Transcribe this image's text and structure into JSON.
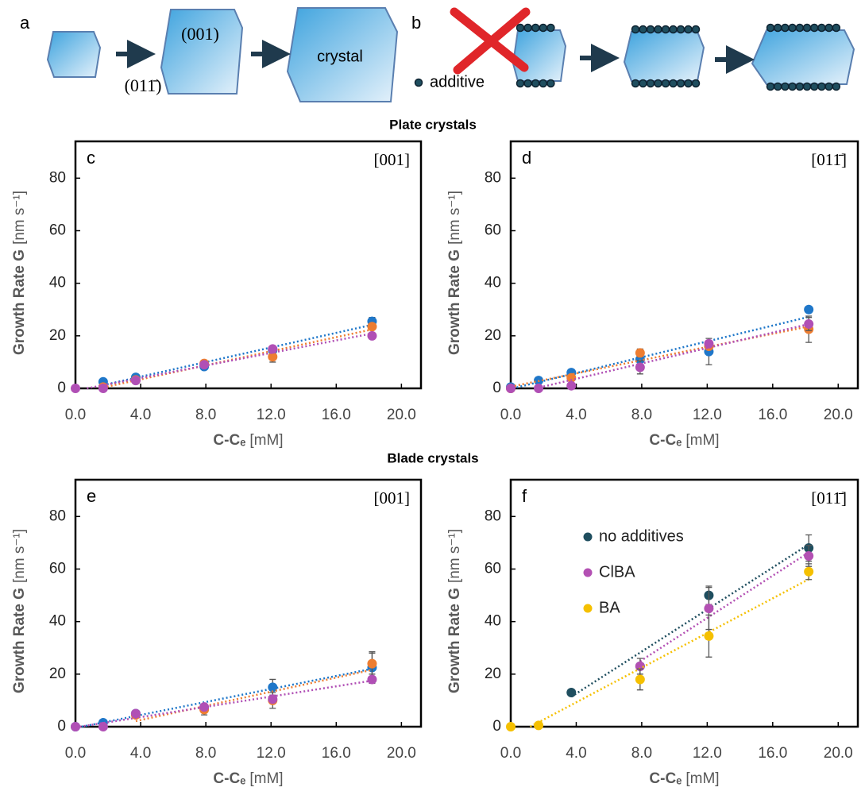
{
  "diagram": {
    "a": "a",
    "b": "b",
    "face_top": "(001)",
    "face_side": "(011̄)",
    "crystal": "crystal",
    "additive": "additive"
  },
  "sections": [
    "Plate crystals",
    "Blade crystals"
  ],
  "chart_data": [
    {
      "type": "scatter",
      "panel": "c",
      "face": "[001]",
      "ylabel": "Growth Rate G",
      "yunit": "[nm s⁻¹]",
      "xlabel": "C-Cₑ",
      "xunit": "[mM]",
      "x": [
        0,
        1.7,
        3.7,
        7.9,
        12.1,
        18.2
      ],
      "xlim": [
        0,
        21.2
      ],
      "ylim": [
        0,
        94
      ],
      "xticks": [
        {
          "value": 0,
          "label": "0.0"
        },
        {
          "value": 4,
          "label": "4.0"
        },
        {
          "value": 8,
          "label": "8.0"
        },
        {
          "value": 12,
          "label": "12.0"
        },
        {
          "value": 16,
          "label": "16.0"
        },
        {
          "value": 20,
          "label": "20.0"
        }
      ],
      "yticks": [
        0,
        20,
        40,
        60,
        80
      ],
      "trendline": true,
      "series": [
        {
          "color": "#1f77c9",
          "values": [
            null,
            2.5,
            4.2,
            8.3,
            14.5,
            25.5
          ],
          "errors": [
            null,
            null,
            null,
            null,
            null,
            1.5
          ]
        },
        {
          "color": "#ed7d31",
          "values": [
            null,
            0.5,
            3.2,
            9.5,
            12,
            23.5
          ],
          "errors": [
            null,
            null,
            null,
            null,
            2,
            null
          ]
        },
        {
          "color": "#b04fb5",
          "values": [
            0,
            0,
            3,
            9,
            15,
            20
          ],
          "errors": [
            null,
            null,
            null,
            null,
            null,
            null
          ]
        }
      ]
    },
    {
      "type": "scatter",
      "panel": "d",
      "face": "[011̄]",
      "ylabel": "Growth Rate G",
      "yunit": "[nm s⁻¹]",
      "xlabel": "C-Cₑ",
      "xunit": "[mM]",
      "x": [
        0,
        1.7,
        3.7,
        7.9,
        12.1,
        18.2
      ],
      "xlim": [
        0,
        21.2
      ],
      "ylim": [
        0,
        94
      ],
      "xticks": [
        {
          "value": 0,
          "label": "0.0"
        },
        {
          "value": 4,
          "label": "4.0"
        },
        {
          "value": 8,
          "label": "8.0"
        },
        {
          "value": 12,
          "label": "12.0"
        },
        {
          "value": 16,
          "label": "16.0"
        },
        {
          "value": 20,
          "label": "20.0"
        }
      ],
      "yticks": [
        0,
        20,
        40,
        60,
        80
      ],
      "trendline": true,
      "series": [
        {
          "color": "#1f77c9",
          "values": [
            0.5,
            3,
            6,
            11,
            14,
            30
          ],
          "errors": [
            null,
            null,
            null,
            3,
            5,
            null
          ]
        },
        {
          "color": "#ed7d31",
          "values": [
            0,
            null,
            4,
            13.5,
            16,
            22.5
          ],
          "errors": [
            null,
            null,
            null,
            1.5,
            null,
            5
          ]
        },
        {
          "color": "#b04fb5",
          "values": [
            0,
            0,
            1,
            8,
            17,
            24.5
          ],
          "errors": [
            null,
            null,
            null,
            2.5,
            null,
            2.5
          ]
        }
      ]
    },
    {
      "type": "scatter",
      "panel": "e",
      "face": "[001]",
      "ylabel": "Growth Rate G",
      "yunit": "[nm s⁻¹]",
      "xlabel": "C-Cₑ",
      "xunit": "[mM]",
      "x": [
        0,
        1.7,
        3.7,
        7.9,
        12.1,
        18.2
      ],
      "xlim": [
        0,
        21.2
      ],
      "ylim": [
        0,
        94
      ],
      "xticks": [
        {
          "value": 0,
          "label": "0.0"
        },
        {
          "value": 4,
          "label": "4.0"
        },
        {
          "value": 8,
          "label": "8.0"
        },
        {
          "value": 12,
          "label": "12.0"
        },
        {
          "value": 16,
          "label": "16.0"
        },
        {
          "value": 20,
          "label": "20.0"
        }
      ],
      "yticks": [
        0,
        20,
        40,
        60,
        80
      ],
      "trendline": true,
      "series": [
        {
          "color": "#1f77c9",
          "values": [
            0,
            1.5,
            5,
            7,
            15,
            22.5
          ],
          "errors": [
            null,
            null,
            null,
            null,
            3,
            6
          ]
        },
        {
          "color": "#ed7d31",
          "values": [
            null,
            null,
            4.5,
            6.5,
            10,
            24
          ],
          "errors": [
            null,
            null,
            null,
            2,
            3,
            4
          ]
        },
        {
          "color": "#b04fb5",
          "values": [
            0,
            0,
            5,
            7.5,
            10.5,
            18
          ],
          "errors": [
            null,
            null,
            null,
            null,
            null,
            null
          ]
        }
      ]
    },
    {
      "type": "scatter",
      "panel": "f",
      "face": "[011̄]",
      "ylabel": "Growth Rate G",
      "yunit": "[nm s⁻¹]",
      "xlabel": "C-Cₑ",
      "xunit": "[mM]",
      "x": [
        0,
        1.7,
        3.7,
        7.9,
        12.1,
        18.2
      ],
      "xlim": [
        0,
        21.2
      ],
      "ylim": [
        0,
        94
      ],
      "xticks": [
        {
          "value": 0,
          "label": "0.0"
        },
        {
          "value": 4,
          "label": "4.0"
        },
        {
          "value": 8,
          "label": "8.0"
        },
        {
          "value": 12,
          "label": "12.0"
        },
        {
          "value": 16,
          "label": "16.0"
        },
        {
          "value": 20,
          "label": "20.0"
        }
      ],
      "yticks": [
        0,
        20,
        40,
        60,
        80
      ],
      "trendline": true,
      "legend": "upper left",
      "series": [
        {
          "name": "no additives",
          "color": "#1f4e5f",
          "values": [
            null,
            null,
            13,
            23,
            50,
            68
          ],
          "errors": [
            null,
            null,
            null,
            null,
            3.5,
            5
          ]
        },
        {
          "name": "ClBA",
          "color": "#b350b3",
          "values": [
            null,
            null,
            null,
            23,
            45,
            65
          ],
          "errors": [
            null,
            null,
            null,
            3,
            8,
            4
          ]
        },
        {
          "name": "BA",
          "color": "#f5c000",
          "values": [
            0,
            0.5,
            null,
            18,
            34.5,
            59
          ],
          "errors": [
            null,
            null,
            null,
            4,
            8,
            3
          ]
        }
      ]
    }
  ]
}
